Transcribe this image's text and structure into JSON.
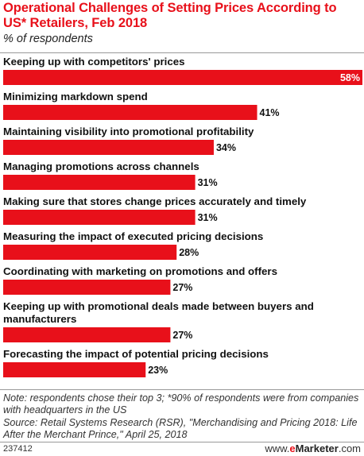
{
  "title": "Operational Challenges of Setting Prices According to US* Retailers, Feb 2018",
  "subtitle": "% of respondents",
  "chart_data": {
    "type": "bar",
    "orientation": "horizontal",
    "categories": [
      "Keeping up with competitors' prices",
      "Minimizing markdown spend",
      "Maintaining visibility into promotional profitability",
      "Managing promotions across channels",
      "Making sure that stores change prices accurately and timely",
      "Measuring the impact of executed pricing decisions",
      "Coordinating with marketing on promotions and offers",
      "Keeping up with promotional deals made between buyers and manufacturers",
      "Forecasting the impact of potential pricing decisions"
    ],
    "category_lines": [
      [
        "Keeping up with competitors' prices"
      ],
      [
        "Minimizing markdown spend"
      ],
      [
        "Maintaining visibility into promotional profitability"
      ],
      [
        "Managing promotions across channels"
      ],
      [
        "Making sure that stores change prices accurately and timely"
      ],
      [
        "Measuring the impact of executed pricing decisions"
      ],
      [
        "Coordinating with marketing on promotions and offers"
      ],
      [
        "Keeping up with promotional deals made between buyers and",
        "manufacturers"
      ],
      [
        "Forecasting the impact of potential pricing decisions"
      ]
    ],
    "values": [
      58,
      41,
      34,
      31,
      31,
      28,
      27,
      27,
      23
    ],
    "value_labels": [
      "58%",
      "41%",
      "34%",
      "31%",
      "31%",
      "28%",
      "27%",
      "27%",
      "23%"
    ],
    "xlim": [
      0,
      58
    ],
    "bar_color": "#e8101a",
    "grid": false
  },
  "note": "Note: respondents chose their top 3; *90% of respondents were from companies with headquarters in the US",
  "source": "Source: Retail Systems Research (RSR), \"Merchandising and Pricing 2018: Life After the Merchant Prince,\" April 25, 2018",
  "footer": {
    "chart_id": "237412",
    "brand_prefix": "www.",
    "brand_accent": "e",
    "brand_name": "Marketer",
    "brand_suffix": ".com"
  }
}
